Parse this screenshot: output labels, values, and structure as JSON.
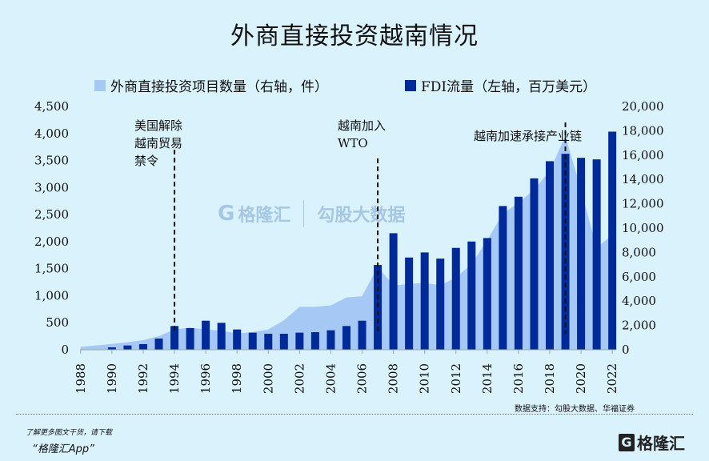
{
  "chart_data": {
    "type": "bar+area",
    "title": "外商直接投资越南情况",
    "categories": [
      1988,
      1989,
      1990,
      1991,
      1992,
      1993,
      1994,
      1995,
      1996,
      1997,
      1998,
      1999,
      2000,
      2001,
      2002,
      2003,
      2004,
      2005,
      2006,
      2007,
      2008,
      2009,
      2010,
      2011,
      2012,
      2013,
      2014,
      2015,
      2016,
      2017,
      2018,
      2019,
      2020,
      2021,
      2022
    ],
    "series": [
      {
        "name": "外商直接投资项目数量（右轴，件）",
        "type": "area",
        "axis": "right",
        "color": "#a6c8f4",
        "values": [
          240,
          350,
          480,
          620,
          790,
          1120,
          1670,
          1820,
          1670,
          1560,
          1340,
          1450,
          1670,
          2430,
          3530,
          3530,
          3640,
          4300,
          4400,
          6820,
          5290,
          5400,
          5510,
          5290,
          5940,
          7040,
          9010,
          11200,
          12080,
          13160,
          14720,
          17570,
          13160,
          8360,
          9450
        ]
      },
      {
        "name": "FDI流量（左轴，百万美元）",
        "type": "bar",
        "axis": "left",
        "color": "#002a9a",
        "values": [
          null,
          null,
          44,
          79,
          104,
          207,
          439,
          400,
          537,
          498,
          375,
          316,
          296,
          296,
          316,
          325,
          360,
          439,
          537,
          1568,
          2155,
          1706,
          1800,
          1686,
          1884,
          2002,
          2066,
          2658,
          2830,
          3170,
          3487,
          3624,
          3550,
          3521,
          4034
        ]
      }
    ],
    "left_axis": {
      "ylim": [
        0,
        4500
      ],
      "ticks": [
        "0",
        "500",
        "1,000",
        "1,500",
        "2,000",
        "2,500",
        "3,000",
        "3,500",
        "4,000",
        "4,500"
      ]
    },
    "right_axis": {
      "ylim": [
        0,
        20000
      ],
      "ticks": [
        "0",
        "2,000",
        "4,000",
        "6,000",
        "8,000",
        "10,000",
        "12,000",
        "14,000",
        "16,000",
        "18,000",
        "20,000"
      ]
    },
    "x_ticks": [
      "1988",
      "1990",
      "1992",
      "1994",
      "1996",
      "1998",
      "2000",
      "2002",
      "2004",
      "2006",
      "2008",
      "2010",
      "2012",
      "2014",
      "2016",
      "2018",
      "2020",
      "2022"
    ],
    "annotations": [
      {
        "year": 1994,
        "lines": [
          "美国解除",
          "越南贸易",
          "禁令"
        ]
      },
      {
        "year": 2007,
        "lines": [
          "越南加入",
          "WTO"
        ]
      },
      {
        "year": 2019,
        "lines": [
          "越南加速承接产业链"
        ]
      }
    ],
    "legend": "top",
    "grid": false
  },
  "watermark": {
    "brand": "格隆汇",
    "brand_url": "www.gelonghui.com",
    "partner": "勾股大数据",
    "partner_url": "www.gogudata.com"
  },
  "footer": {
    "source": "数据支持：勾股大数据、华福证券",
    "promo_line1": "了解更多图文干货，请下载",
    "promo_line2": "“格隆汇App”",
    "logo_text": "格隆汇"
  }
}
